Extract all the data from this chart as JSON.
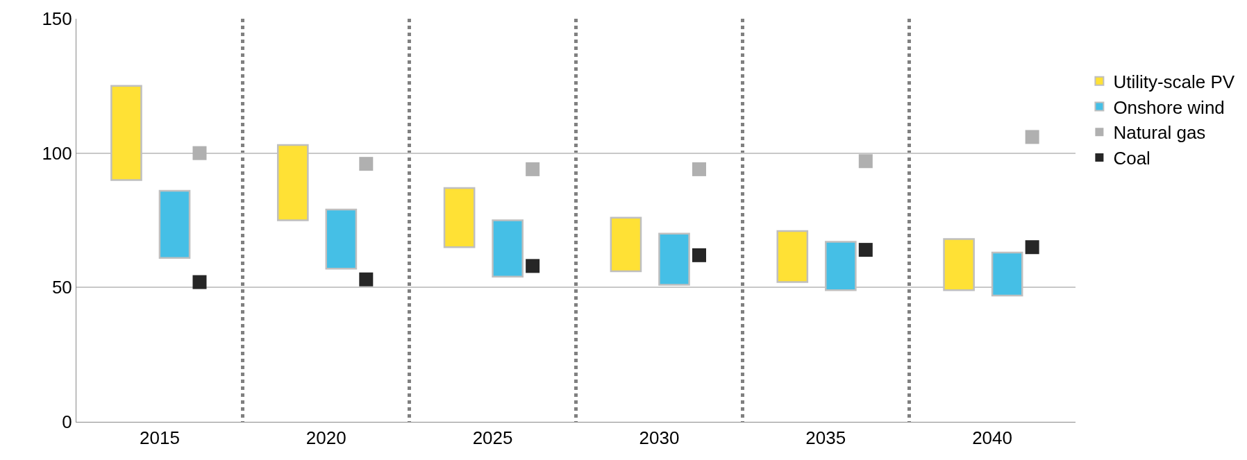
{
  "chart_data": {
    "type": "bar",
    "categories": [
      "2015",
      "2020",
      "2025",
      "2030",
      "2035",
      "2040"
    ],
    "series": [
      {
        "name": "Utility-scale PV",
        "color": "#ffe135",
        "values": [
          35,
          28,
          22,
          20,
          19,
          19
        ],
        "base": [
          90,
          75,
          65,
          56,
          52,
          49
        ]
      },
      {
        "name": "Onshore wind",
        "color": "#45bfe6",
        "values": [
          25,
          22,
          21,
          19,
          18,
          16
        ],
        "base": [
          61,
          57,
          54,
          51,
          49,
          47
        ]
      },
      {
        "name": "Natural gas",
        "color": "#b0b0b0",
        "type": "scatter",
        "values": [
          100,
          96,
          94,
          94,
          97,
          106
        ]
      },
      {
        "name": "Coal",
        "color": "#262626",
        "type": "scatter",
        "values": [
          52,
          53,
          58,
          62,
          64,
          65
        ]
      }
    ],
    "ylim": [
      0,
      150
    ],
    "yticks": [
      0,
      50,
      100,
      150
    ],
    "grid": true,
    "legend": "right",
    "marker": "square"
  }
}
